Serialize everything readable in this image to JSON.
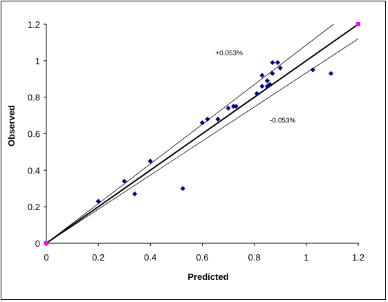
{
  "chart_data": {
    "type": "scatter",
    "title": "",
    "xlabel": "Predicted",
    "ylabel": "Observed",
    "xlim": [
      0,
      1.2
    ],
    "ylim": [
      0,
      1.2
    ],
    "x_ticks": [
      "0",
      "0.2",
      "0.4",
      "0.6",
      "0.8",
      "1",
      "1.2"
    ],
    "y_ticks": [
      "0",
      "0.2",
      "0.4",
      "0.6",
      "0.8",
      "1",
      "1.2"
    ],
    "grid": false,
    "legend": "none",
    "annotations": [
      {
        "text": "+0.053%",
        "x": 0.65,
        "y": 1.03
      },
      {
        "text": "-0.053%",
        "x": 0.86,
        "y": 0.66
      }
    ],
    "reference_lines": [
      {
        "name": "1:1",
        "points": [
          [
            0,
            0
          ],
          [
            1.2,
            1.2
          ]
        ],
        "color": "#000000",
        "width": "bold"
      },
      {
        "name": "upper",
        "points": [
          [
            0,
            0
          ],
          [
            1.105,
            1.2
          ]
        ],
        "color": "#000000",
        "width": "thin"
      },
      {
        "name": "lower",
        "points": [
          [
            0,
            0
          ],
          [
            1.2,
            1.12
          ]
        ],
        "color": "#000000",
        "width": "thin"
      }
    ],
    "series": [
      {
        "color": "#000080",
        "marker": "diamond",
        "points": [
          [
            0.0,
            0.0
          ],
          [
            0.2,
            0.23
          ],
          [
            0.3,
            0.34
          ],
          [
            0.34,
            0.27
          ],
          [
            0.4,
            0.45
          ],
          [
            0.525,
            0.3
          ],
          [
            0.6,
            0.66
          ],
          [
            0.62,
            0.68
          ],
          [
            0.66,
            0.68
          ],
          [
            0.7,
            0.74
          ],
          [
            0.72,
            0.75
          ],
          [
            0.73,
            0.75
          ],
          [
            0.81,
            0.82
          ],
          [
            0.83,
            0.86
          ],
          [
            0.83,
            0.92
          ],
          [
            0.85,
            0.86
          ],
          [
            0.85,
            0.89
          ],
          [
            0.86,
            0.87
          ],
          [
            0.87,
            0.93
          ],
          [
            0.87,
            0.99
          ],
          [
            0.89,
            0.99
          ],
          [
            0.9,
            0.96
          ],
          [
            1.025,
            0.95
          ],
          [
            1.095,
            0.93
          ]
        ]
      },
      {
        "color": "#ff00ff",
        "marker": "square",
        "points": [
          [
            0.0,
            0.0
          ],
          [
            1.2,
            1.2
          ]
        ]
      }
    ]
  }
}
